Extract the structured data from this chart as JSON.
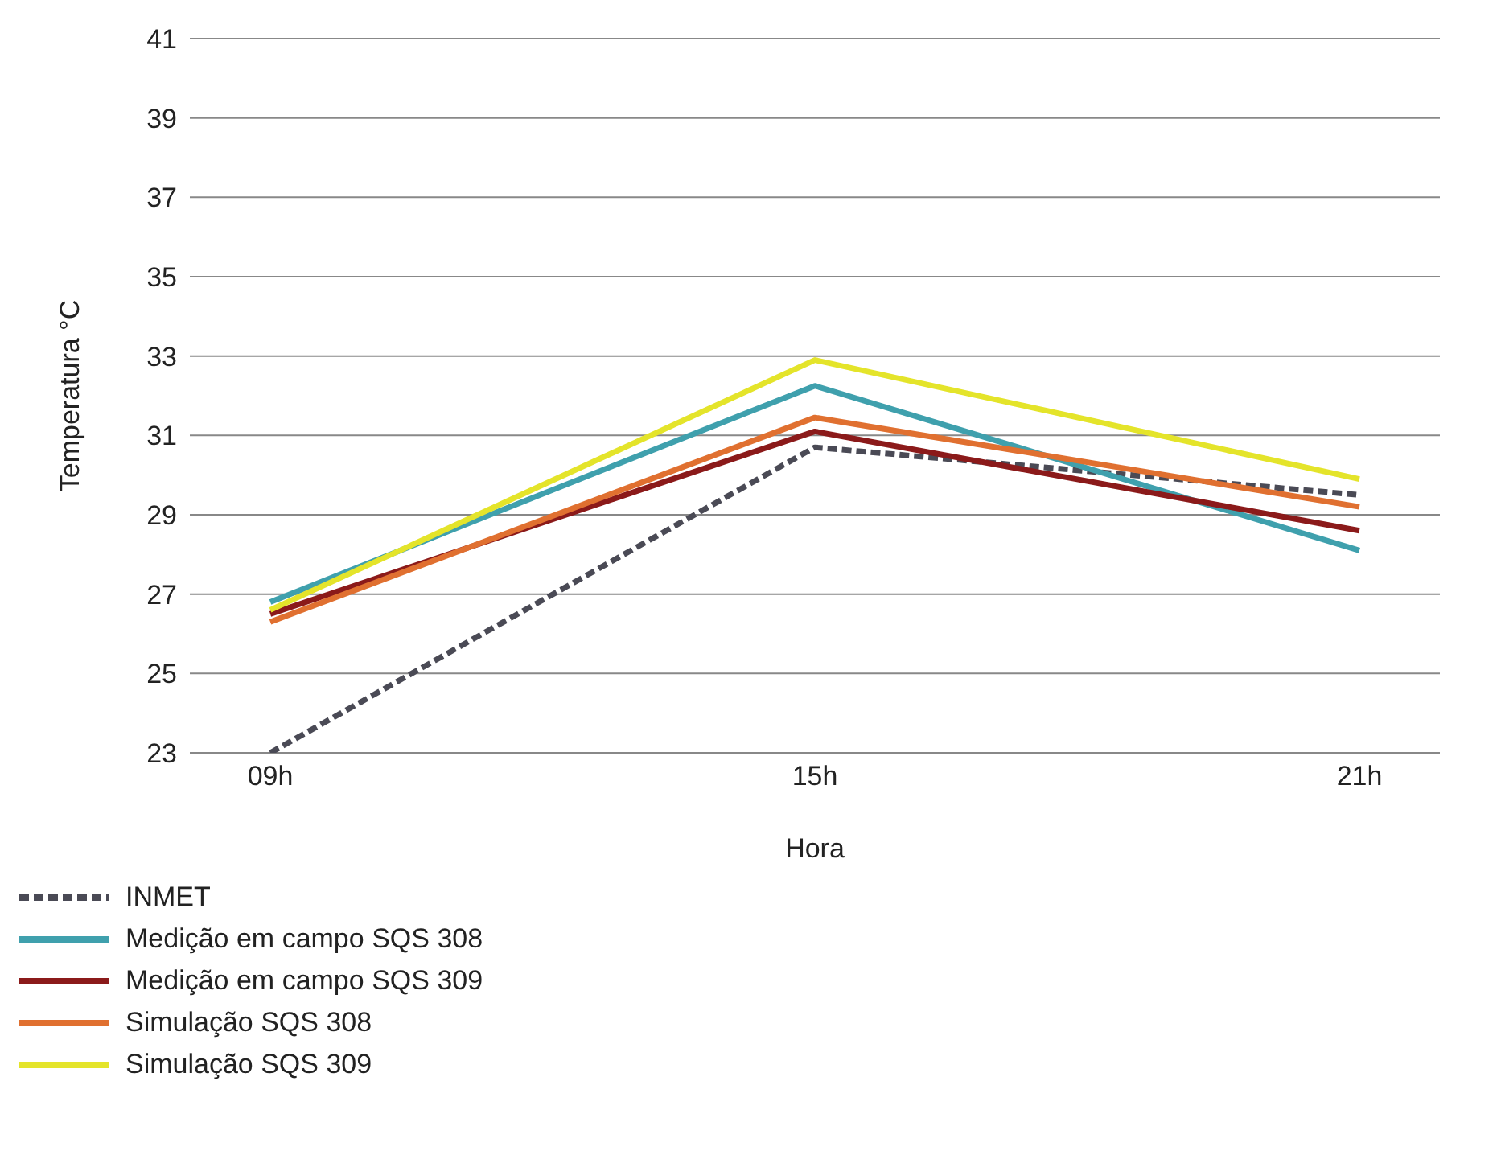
{
  "chart_data": {
    "type": "line",
    "xlabel": "Hora",
    "ylabel": "Temperatura °C",
    "categories": [
      "09h",
      "15h",
      "21h"
    ],
    "series": [
      {
        "name": "INMET",
        "color": "#4a4a55",
        "line_style": "dashed",
        "values": [
          23,
          30.7,
          29.5
        ]
      },
      {
        "name": "Medição em campo SQS 308",
        "color": "#3fa0ad",
        "values": [
          26.8,
          32.25,
          28.1
        ]
      },
      {
        "name": "Medição em campo SQS 309",
        "color": "#8b1a1a",
        "values": [
          26.5,
          31.1,
          28.6
        ]
      },
      {
        "name": "Simulação SQS 308",
        "color": "#e07030",
        "values": [
          26.3,
          31.45,
          29.2
        ]
      },
      {
        "name": "Simulação SQS 309",
        "color": "#e4e42a",
        "values": [
          26.6,
          32.9,
          29.9
        ]
      }
    ],
    "ylim": [
      23,
      41
    ],
    "yticks": [
      23,
      25,
      27,
      29,
      31,
      33,
      35,
      37,
      39,
      41
    ],
    "grid": "y",
    "legend": "bottom left",
    "marker": "none"
  }
}
